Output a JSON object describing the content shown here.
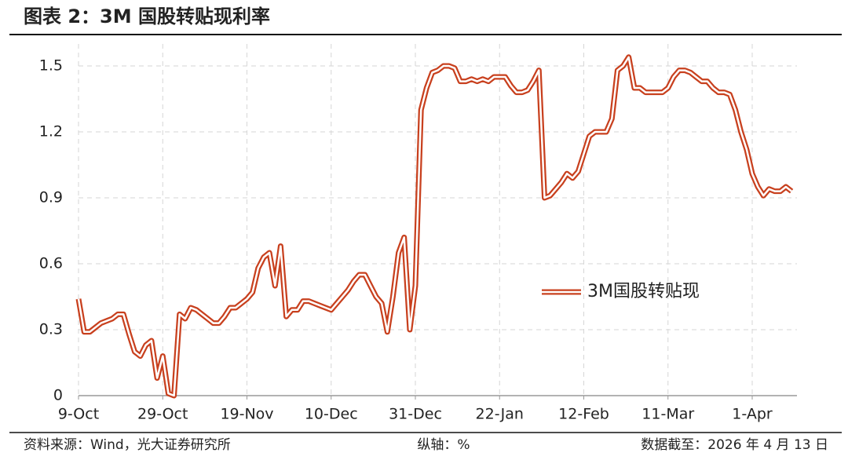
{
  "chart_data": {
    "type": "line",
    "title": "图表 2：3M 国股转贴现利率",
    "categories": [
      "9-Oct",
      null,
      null,
      null,
      null,
      null,
      null,
      null,
      null,
      null,
      null,
      null,
      null,
      null,
      null,
      "29-Oct",
      null,
      null,
      null,
      null,
      null,
      null,
      null,
      null,
      null,
      null,
      null,
      null,
      null,
      null,
      "19-Nov",
      null,
      null,
      null,
      null,
      null,
      null,
      null,
      null,
      null,
      null,
      null,
      null,
      null,
      null,
      "10-Dec",
      null,
      null,
      null,
      null,
      null,
      null,
      null,
      null,
      null,
      null,
      null,
      null,
      null,
      null,
      "31-Dec",
      null,
      null,
      null,
      null,
      null,
      null,
      null,
      null,
      null,
      null,
      null,
      null,
      null,
      null,
      "22-Jan",
      null,
      null,
      null,
      null,
      null,
      null,
      null,
      null,
      null,
      null,
      null,
      null,
      null,
      null,
      "12-Feb",
      null,
      null,
      null,
      null,
      null,
      null,
      null,
      null,
      null,
      null,
      null,
      null,
      null,
      null,
      "11-Mar",
      null,
      null,
      null,
      null,
      null,
      null,
      null,
      null,
      null,
      null,
      null,
      null,
      null,
      null,
      "1-Apr",
      null,
      null,
      null,
      null,
      null,
      null,
      null
    ],
    "series": [
      {
        "name": "3M国股转贴现",
        "color": "#c8401e",
        "values": [
          0.44,
          0.29,
          0.29,
          0.31,
          0.33,
          0.34,
          0.35,
          0.37,
          0.37,
          0.28,
          0.2,
          0.18,
          0.23,
          0.25,
          0.08,
          0.18,
          0.01,
          0.0,
          0.37,
          0.35,
          0.4,
          0.39,
          0.37,
          0.35,
          0.33,
          0.33,
          0.36,
          0.4,
          0.4,
          0.42,
          0.44,
          0.47,
          0.58,
          0.63,
          0.65,
          0.5,
          0.68,
          0.36,
          0.39,
          0.39,
          0.43,
          0.43,
          0.42,
          0.41,
          0.4,
          0.39,
          0.42,
          0.45,
          0.48,
          0.52,
          0.55,
          0.55,
          0.5,
          0.45,
          0.42,
          0.29,
          0.45,
          0.65,
          0.72,
          0.3,
          0.5,
          1.3,
          1.4,
          1.47,
          1.48,
          1.5,
          1.5,
          1.49,
          1.43,
          1.43,
          1.44,
          1.43,
          1.44,
          1.43,
          1.45,
          1.45,
          1.45,
          1.41,
          1.38,
          1.38,
          1.39,
          1.43,
          1.48,
          0.9,
          0.91,
          0.94,
          0.97,
          1.01,
          0.99,
          1.02,
          1.1,
          1.18,
          1.2,
          1.2,
          1.2,
          1.26,
          1.48,
          1.5,
          1.54,
          1.4,
          1.4,
          1.38,
          1.38,
          1.38,
          1.38,
          1.4,
          1.45,
          1.48,
          1.48,
          1.47,
          1.45,
          1.43,
          1.43,
          1.4,
          1.38,
          1.38,
          1.37,
          1.3,
          1.2,
          1.12,
          1.01,
          0.95,
          0.91,
          0.94,
          0.93,
          0.93,
          0.95,
          0.93
        ]
      }
    ],
    "ylim": [
      0,
      1.6
    ],
    "yticks": [
      0,
      0.3,
      0.6,
      0.9,
      1.2,
      1.5
    ],
    "grid": true,
    "source": "资料来源：Wind，光大证券研究所",
    "y_axis_note": "纵轴：%",
    "date_note": "数据截至：2026 年 4 月 13 日"
  }
}
